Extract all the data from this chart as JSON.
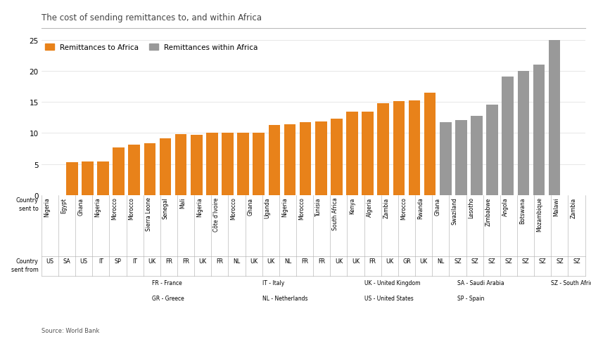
{
  "title": "The cost of sending remittances to, and within Africa",
  "source": "Source: World Bank",
  "orange_color": "#E8821A",
  "gray_color": "#999999",
  "background_color": "#FFFFFF",
  "yticks": [
    0,
    5,
    10,
    15,
    20,
    25
  ],
  "legend_label_orange": "Remittances to Africa",
  "legend_label_gray": "Remittances within Africa",
  "bars": [
    {
      "country_to": "Nigeria",
      "country_from": "US",
      "value": 5.3,
      "color": "orange"
    },
    {
      "country_to": "Egypt",
      "country_from": "SA",
      "value": 5.4,
      "color": "orange"
    },
    {
      "country_to": "Ghana",
      "country_from": "US",
      "value": 5.4,
      "color": "orange"
    },
    {
      "country_to": "Nigeria",
      "country_from": "IT",
      "value": 7.7,
      "color": "orange"
    },
    {
      "country_to": "Morocco",
      "country_from": "SP",
      "value": 8.1,
      "color": "orange"
    },
    {
      "country_to": "Morocco",
      "country_from": "IT",
      "value": 8.4,
      "color": "orange"
    },
    {
      "country_to": "Sierra Leone",
      "country_from": "UK",
      "value": 9.1,
      "color": "orange"
    },
    {
      "country_to": "Senegal",
      "country_from": "FR",
      "value": 9.8,
      "color": "orange"
    },
    {
      "country_to": "Mali",
      "country_from": "FR",
      "value": 9.7,
      "color": "orange"
    },
    {
      "country_to": "Nigeria",
      "country_from": "UK",
      "value": 10.0,
      "color": "orange"
    },
    {
      "country_to": "Côte d'Ivoire",
      "country_from": "FR",
      "value": 10.0,
      "color": "orange"
    },
    {
      "country_to": "Morocco",
      "country_from": "NL",
      "value": 10.0,
      "color": "orange"
    },
    {
      "country_to": "Ghana",
      "country_from": "UK",
      "value": 10.0,
      "color": "orange"
    },
    {
      "country_to": "Uganda",
      "country_from": "UK",
      "value": 11.3,
      "color": "orange"
    },
    {
      "country_to": "Nigeria",
      "country_from": "NL",
      "value": 11.4,
      "color": "orange"
    },
    {
      "country_to": "Morocco",
      "country_from": "FR",
      "value": 11.8,
      "color": "orange"
    },
    {
      "country_to": "Tunisia",
      "country_from": "FR",
      "value": 11.9,
      "color": "orange"
    },
    {
      "country_to": "South Africa",
      "country_from": "UK",
      "value": 12.3,
      "color": "orange"
    },
    {
      "country_to": "Kenya",
      "country_from": "UK",
      "value": 13.4,
      "color": "orange"
    },
    {
      "country_to": "Algeria",
      "country_from": "FR",
      "value": 13.4,
      "color": "orange"
    },
    {
      "country_to": "Zambia",
      "country_from": "UK",
      "value": 14.8,
      "color": "orange"
    },
    {
      "country_to": "Morocco",
      "country_from": "GR",
      "value": 15.1,
      "color": "orange"
    },
    {
      "country_to": "Rwanda",
      "country_from": "UK",
      "value": 15.3,
      "color": "orange"
    },
    {
      "country_to": "Ghana",
      "country_from": "NL",
      "value": 16.5,
      "color": "orange"
    },
    {
      "country_to": "Swaziland",
      "country_from": "SZ",
      "value": 11.8,
      "color": "gray"
    },
    {
      "country_to": "Lesotho",
      "country_from": "SZ",
      "value": 12.1,
      "color": "gray"
    },
    {
      "country_to": "Zimbabwe",
      "country_from": "SZ",
      "value": 12.8,
      "color": "gray"
    },
    {
      "country_to": "Angola",
      "country_from": "SZ",
      "value": 14.6,
      "color": "gray"
    },
    {
      "country_to": "Botswana",
      "country_from": "SZ",
      "value": 19.1,
      "color": "gray"
    },
    {
      "country_to": "Mozambique",
      "country_from": "SZ",
      "value": 20.0,
      "color": "gray"
    },
    {
      "country_to": "Malawi",
      "country_from": "SZ",
      "value": 21.0,
      "color": "gray"
    },
    {
      "country_to": "Zambia",
      "country_from": "SZ",
      "value": 25.0,
      "color": "gray"
    }
  ],
  "abbrev_cols": [
    [
      "FR - France",
      "GR - Greece"
    ],
    [
      "IT - Italy",
      "NL - Netherlands"
    ],
    [
      "UK - United Kingdom",
      "US - United States"
    ],
    [
      "SA - Saudi Arabia",
      "SP - Spain"
    ],
    [
      "SZ - South Africa",
      ""
    ]
  ]
}
